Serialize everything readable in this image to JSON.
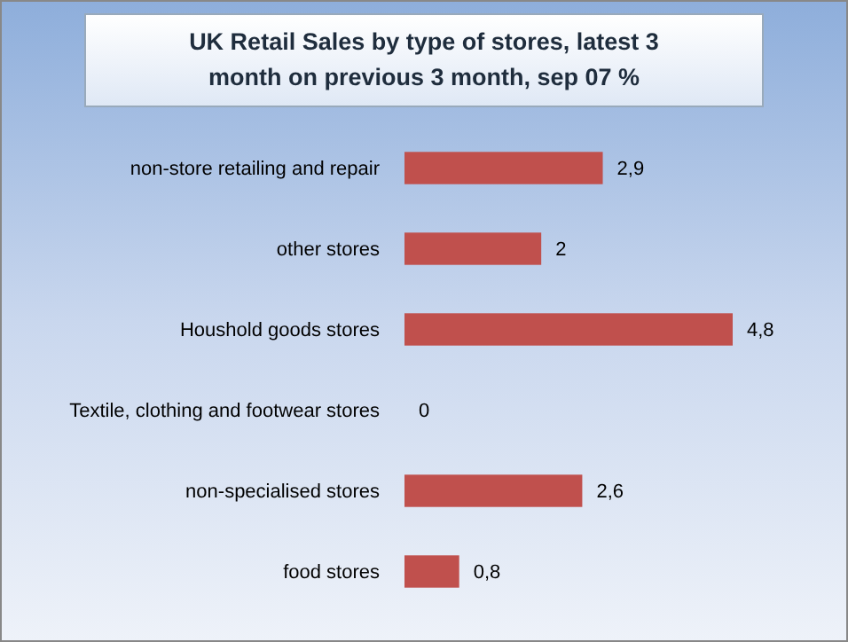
{
  "chart_data": {
    "type": "bar",
    "orientation": "horizontal",
    "title": "UK Retail Sales by type of stores, latest 3 month on previous 3 month, sep 07 %",
    "categories": [
      "non-store retailing and repair",
      "other stores",
      "Houshold goods stores",
      "Textile, clothing and footwear stores",
      "non-specialised stores",
      "food stores"
    ],
    "values": [
      2.9,
      2,
      4.8,
      0,
      2.6,
      0.8
    ],
    "value_labels": [
      "2,9",
      "2",
      "4,8",
      "0",
      "2,6",
      "0,8"
    ],
    "color": "#c0504d",
    "tick_labels": "y"
  }
}
